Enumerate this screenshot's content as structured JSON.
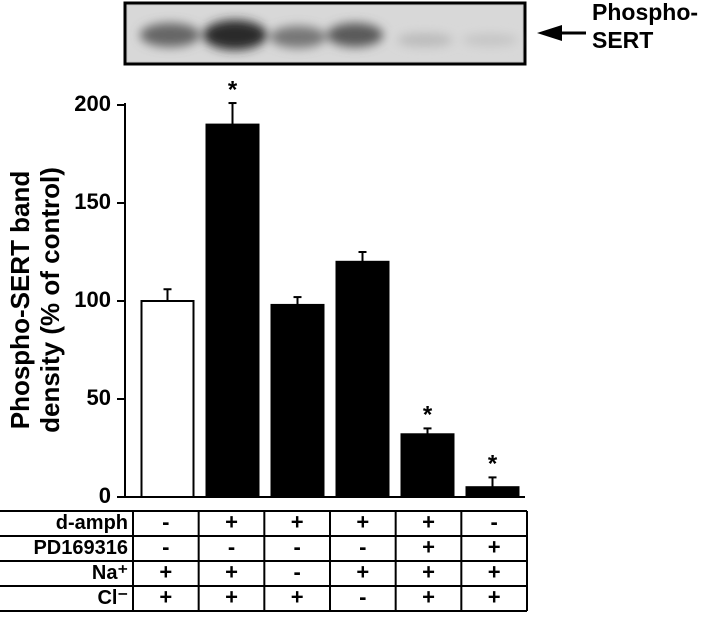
{
  "chart_data": {
    "type": "bar",
    "blot_label": [
      "Phospho-",
      "SERT"
    ],
    "y_label": [
      "Phospho-SERT band",
      "density  (% of control)"
    ],
    "categories": [
      null,
      null,
      null,
      null,
      null,
      null
    ],
    "values": [
      100,
      190,
      98,
      120,
      32,
      5
    ],
    "errors": [
      6,
      11,
      4,
      5,
      3,
      5
    ],
    "colors": [
      "#ffffff",
      "#000000",
      "#000000",
      "#000000",
      "#000000",
      "#000000"
    ],
    "significance": [
      null,
      "*",
      null,
      null,
      "*",
      "*"
    ],
    "ylim": [
      0,
      200
    ],
    "yticks": [
      0,
      50,
      100,
      150,
      200
    ],
    "conditions": [
      {
        "label": "d-amph",
        "cells": [
          "-",
          "+",
          "+",
          "+",
          "+",
          "-"
        ]
      },
      {
        "label": "PD169316",
        "cells": [
          "-",
          "-",
          "-",
          "-",
          "+",
          "+"
        ]
      },
      {
        "label": "Na⁺",
        "cells": [
          "+",
          "+",
          "-",
          "+",
          "+",
          "+"
        ]
      },
      {
        "label": "Cl⁻",
        "cells": [
          "+",
          "+",
          "+",
          "-",
          "+",
          "+"
        ]
      }
    ]
  }
}
